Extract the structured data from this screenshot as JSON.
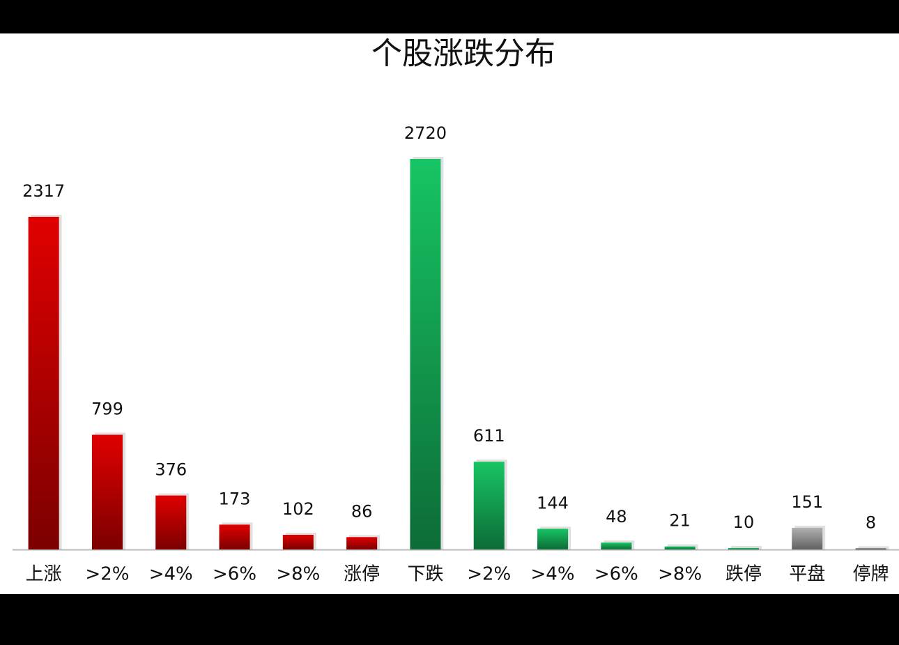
{
  "chart_data": {
    "type": "bar",
    "title": "个股涨跌分布",
    "categories": [
      "上涨",
      ">2%",
      ">4%",
      ">6%",
      ">8%",
      "涨停",
      "下跌",
      ">2%",
      ">4%",
      ">6%",
      ">8%",
      "跌停",
      "平盘",
      "停牌"
    ],
    "values": [
      2317,
      799,
      376,
      173,
      102,
      86,
      2720,
      611,
      144,
      48,
      21,
      10,
      151,
      8
    ],
    "colors": [
      "#e00000",
      "#e00000",
      "#e00000",
      "#e00000",
      "#e00000",
      "#e00000",
      "#17c463",
      "#17c463",
      "#17c463",
      "#17c463",
      "#17c463",
      "#17c463",
      "#b0b0b0",
      "#666666"
    ]
  }
}
